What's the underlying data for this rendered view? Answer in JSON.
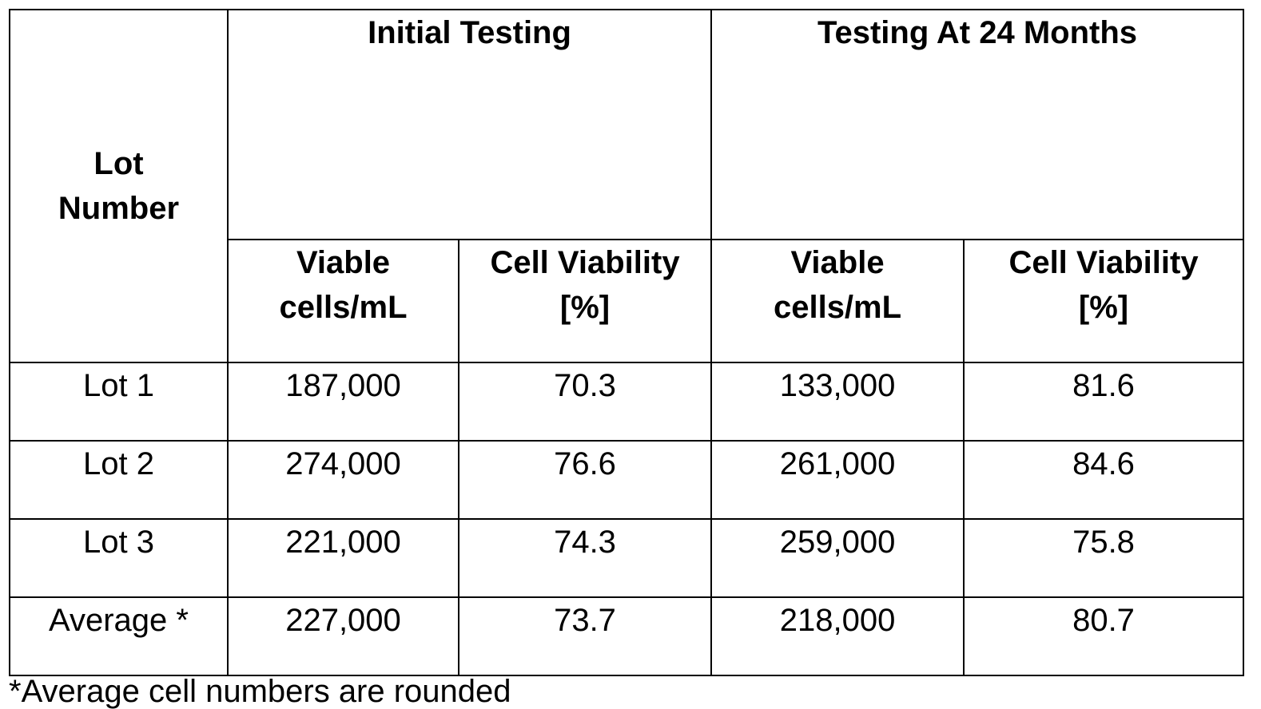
{
  "table": {
    "lot_header": [
      "Lot",
      "Number"
    ],
    "groups": [
      {
        "label": "Initial Testing"
      },
      {
        "label": "Testing At 24 Months"
      }
    ],
    "sub_headers": [
      [
        "Viable",
        "cells/mL"
      ],
      [
        "Cell Viability",
        "[%]"
      ],
      [
        "Viable",
        "cells/mL"
      ],
      [
        "Cell Viability",
        "[%]"
      ]
    ],
    "rows": [
      {
        "lot": "Lot 1",
        "values": [
          "187,000",
          "70.3",
          "133,000",
          "81.6"
        ]
      },
      {
        "lot": "Lot 2",
        "values": [
          "274,000",
          "76.6",
          "261,000",
          "84.6"
        ]
      },
      {
        "lot": "Lot 3",
        "values": [
          "221,000",
          "74.3",
          "259,000",
          "75.8"
        ]
      },
      {
        "lot": "Average *",
        "values": [
          "227,000",
          "73.7",
          "218,000",
          "80.7"
        ]
      }
    ]
  },
  "footnote": "*Average cell numbers are rounded"
}
